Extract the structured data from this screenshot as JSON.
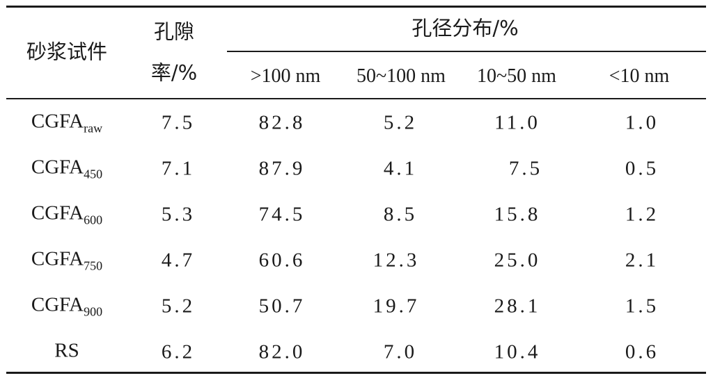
{
  "table": {
    "header": {
      "specimen": "砂浆试件",
      "porosity_line1": "孔隙",
      "porosity_line2": "率/%",
      "distribution": "孔径分布/%",
      "ranges": [
        ">100 nm",
        "50~100 nm",
        "10~50 nm",
        "<10 nm"
      ]
    },
    "rows": [
      {
        "name": "CGFA",
        "sub": "raw",
        "porosity": "7.5",
        "values": [
          "82.8",
          "5.2",
          "11.0",
          "1.0"
        ]
      },
      {
        "name": "CGFA",
        "sub": "450",
        "porosity": "7.1",
        "values": [
          "87.9",
          "4.1",
          "7.5",
          "0.5"
        ]
      },
      {
        "name": "CGFA",
        "sub": "600",
        "porosity": "5.3",
        "values": [
          "74.5",
          "8.5",
          "15.8",
          "1.2"
        ]
      },
      {
        "name": "CGFA",
        "sub": "750",
        "porosity": "4.7",
        "values": [
          "60.6",
          "12.3",
          "25.0",
          "2.1"
        ]
      },
      {
        "name": "CGFA",
        "sub": "900",
        "porosity": "5.2",
        "values": [
          "50.7",
          "19.7",
          "28.1",
          "1.5"
        ]
      },
      {
        "name": "RS",
        "sub": "",
        "porosity": "6.2",
        "values": [
          "82.0",
          "7.0",
          "10.4",
          "0.6"
        ]
      }
    ]
  }
}
